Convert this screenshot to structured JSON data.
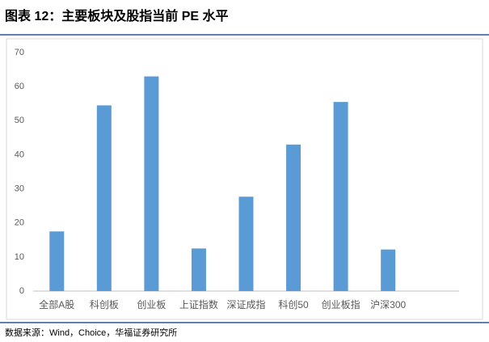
{
  "chart_data": {
    "type": "bar",
    "title": "图表 12：主要板块及股指当前 PE 水平",
    "source": "数据来源：Wind，Choice，华福证券研究所",
    "categories": [
      "全部A股",
      "科创板",
      "创业板",
      "上证指数",
      "深证成指",
      "科创50",
      "创业板指",
      "沪深300",
      null
    ],
    "values": [
      17.5,
      54.5,
      63,
      12.5,
      27.7,
      43,
      55.5,
      12.2,
      null
    ],
    "color": "#5b9bd5",
    "ylim": [
      0,
      70
    ],
    "yticks": [
      0,
      10,
      20,
      30,
      40,
      50,
      60,
      70
    ],
    "grid": false
  }
}
